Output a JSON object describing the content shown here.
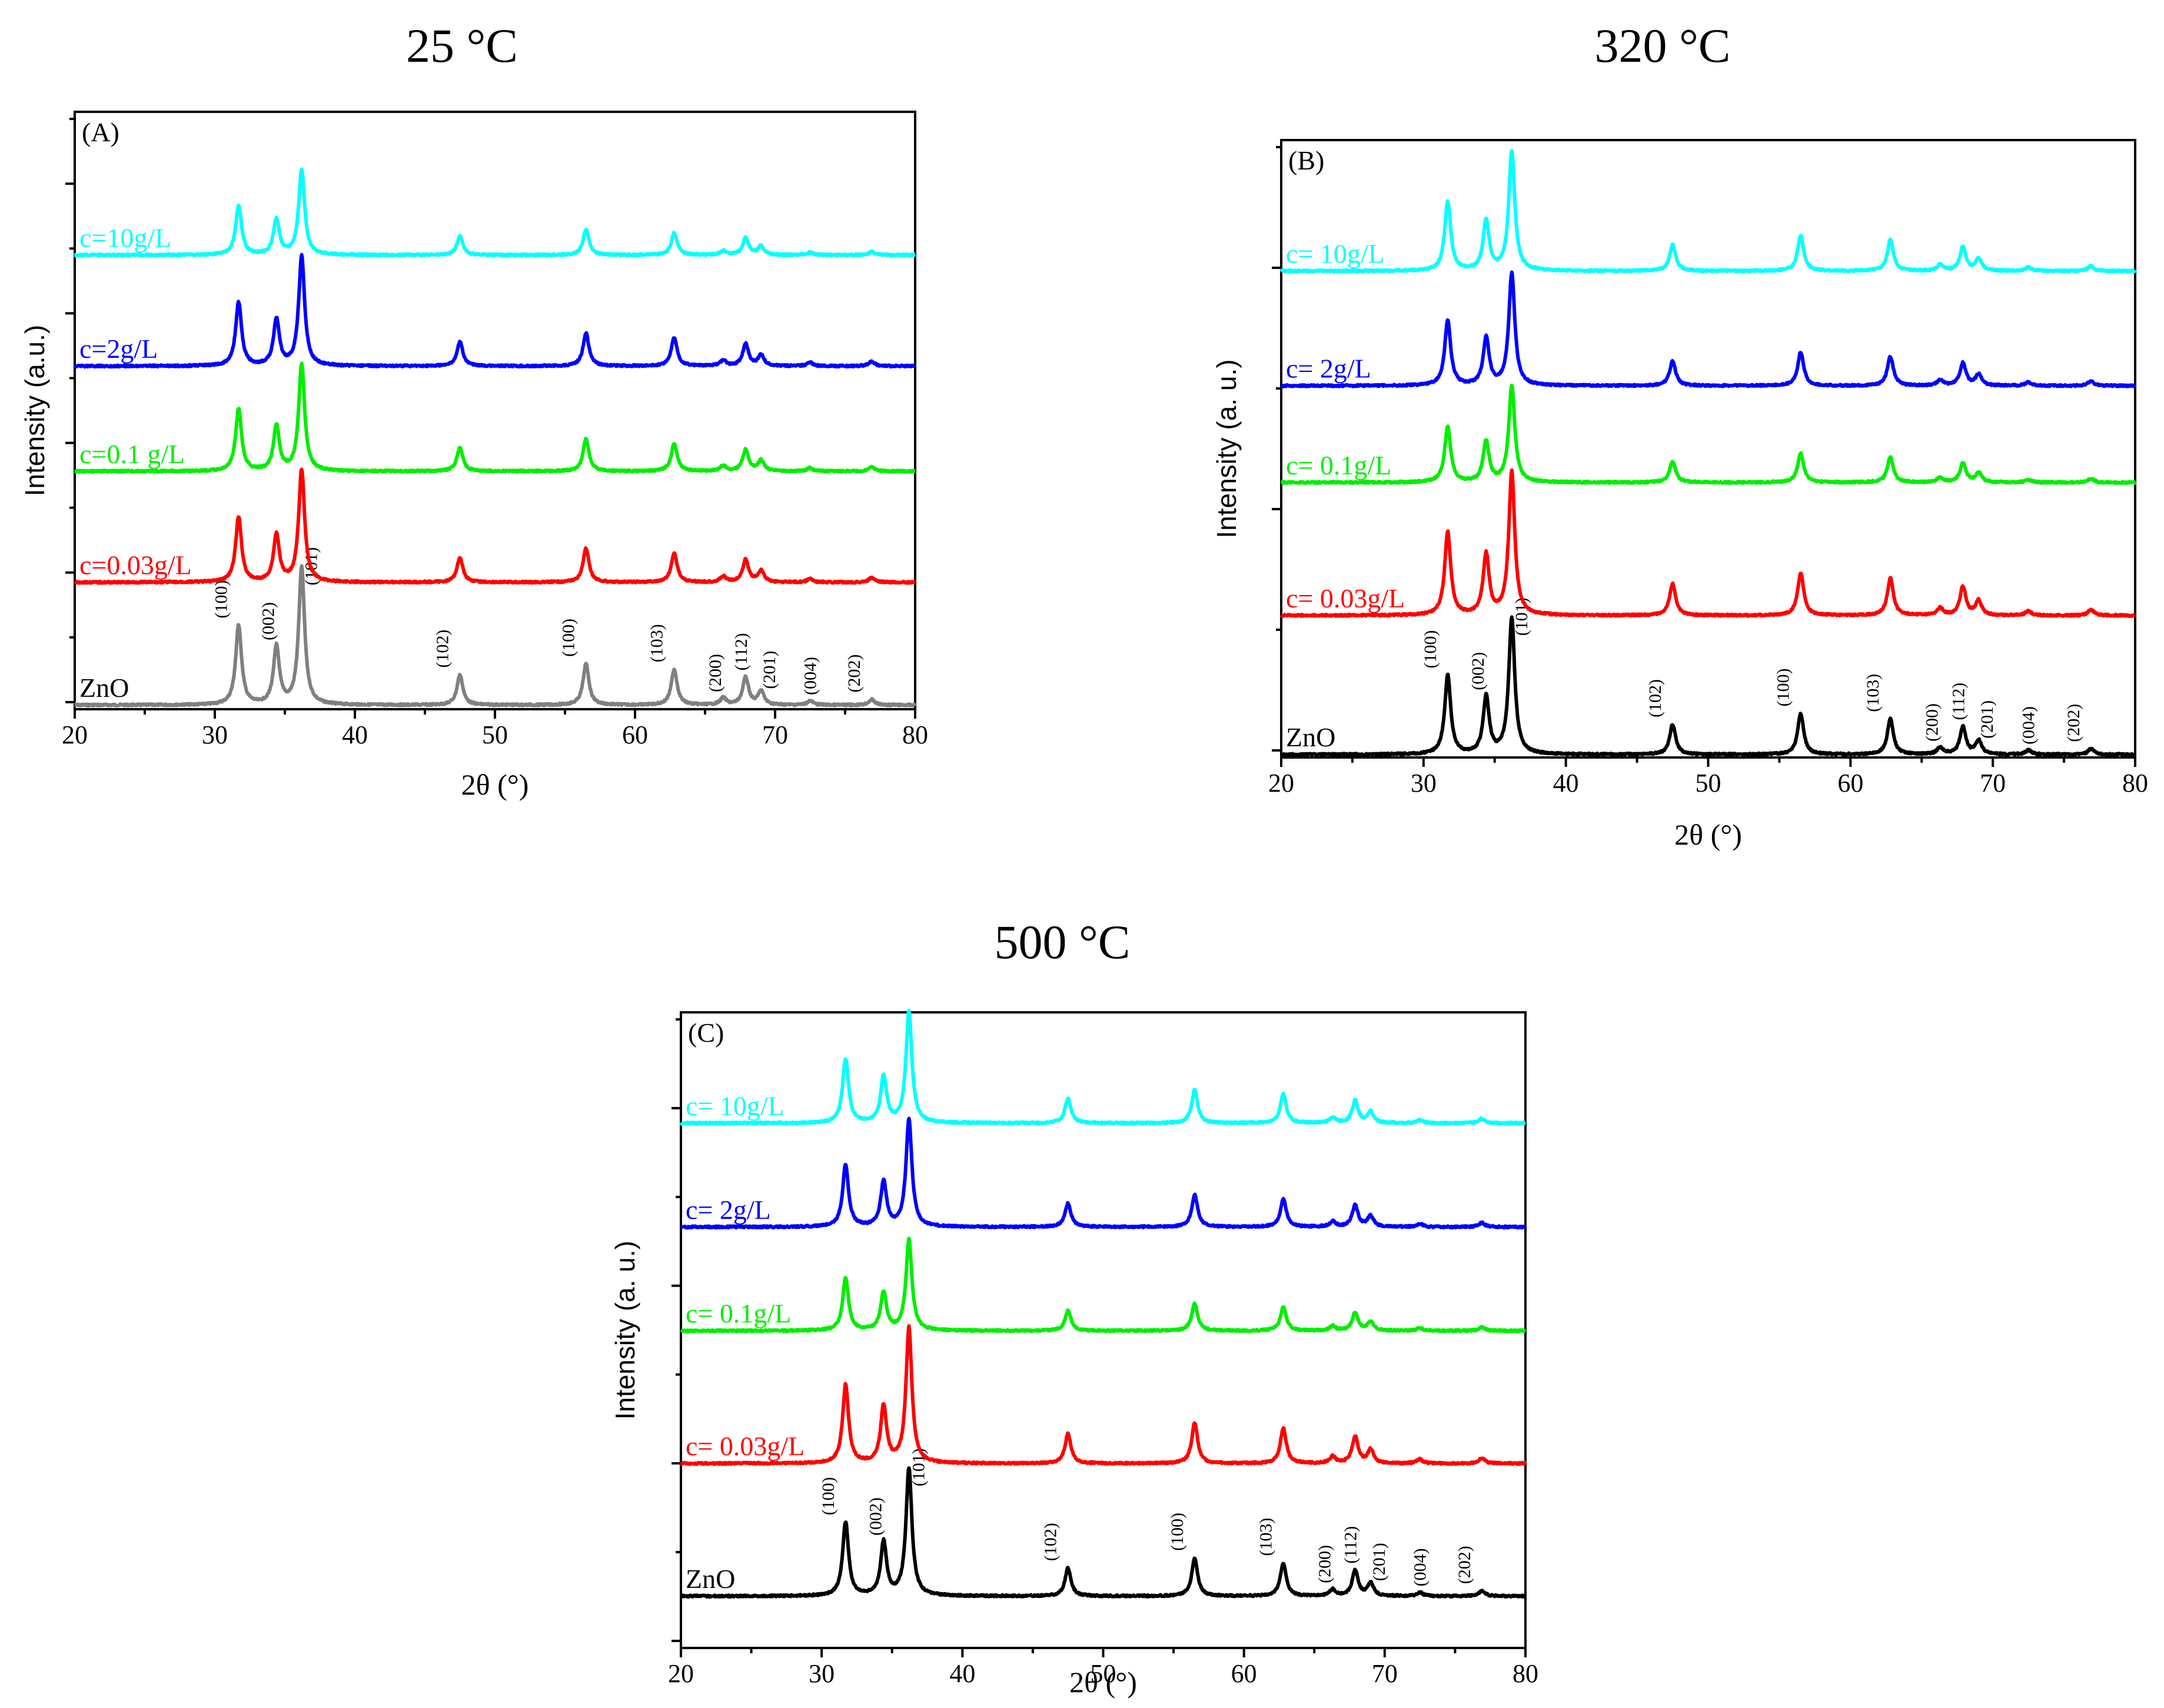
{
  "chart_data": [
    {
      "type": "line",
      "id": "A",
      "title": "25 °C",
      "panel_label": "(A)",
      "xlabel": "2θ (°)",
      "ylabel": "Intensity (a.u.)",
      "xlim": [
        20,
        80
      ],
      "xticks": [
        20,
        30,
        40,
        50,
        60,
        70,
        80
      ],
      "y_tick_count": 10,
      "series": [
        {
          "name": "ZnO",
          "label": "ZnO",
          "color": "#808080",
          "baseline": 0.0,
          "scale": 1.0
        },
        {
          "name": "c=0.03g/L",
          "label": "c=0.03g/L",
          "color": "#ff0000",
          "baseline": 0.21,
          "scale": 0.82
        },
        {
          "name": "c=0.1 g/L",
          "label": "c=0.1 g/L",
          "color": "#00ee00",
          "baseline": 0.4,
          "scale": 0.78
        },
        {
          "name": "c=2g/L",
          "label": "c=2g/L",
          "color": "#0000ff",
          "baseline": 0.58,
          "scale": 0.8
        },
        {
          "name": "c=10g/L",
          "label": "c=10g/L",
          "color": "#00ffff",
          "baseline": 0.77,
          "scale": 0.62
        }
      ]
    },
    {
      "type": "line",
      "id": "B",
      "title": "320 °C",
      "panel_label": "(B)",
      "xlabel": "2θ (°)",
      "ylabel": "Intensity (a. u.)",
      "xlim": [
        20,
        80
      ],
      "xticks": [
        20,
        30,
        40,
        50,
        60,
        70,
        80
      ],
      "y_tick_count": 6,
      "series": [
        {
          "name": "ZnO",
          "label": "ZnO",
          "color": "#000000",
          "baseline": 0.0,
          "scale": 0.96
        },
        {
          "name": "c= 0.03g/L",
          "label": "c= 0.03g/L",
          "color": "#ff0000",
          "baseline": 0.23,
          "scale": 1.01
        },
        {
          "name": "c= 0.1g/L",
          "label": "c= 0.1g/L",
          "color": "#00ee00",
          "baseline": 0.45,
          "scale": 0.68
        },
        {
          "name": "c= 2g/L",
          "label": "c= 2g/L",
          "color": "#0000ff",
          "baseline": 0.61,
          "scale": 0.79
        },
        {
          "name": "c= 10g/L",
          "label": "c= 10g/L",
          "color": "#00ffff",
          "baseline": 0.8,
          "scale": 0.84
        }
      ]
    },
    {
      "type": "line",
      "id": "C",
      "title": "500 °C",
      "panel_label": "(C)",
      "xlabel": "2θ (°)",
      "ylabel": "Intensity (a. u.)",
      "xlim": [
        20,
        80
      ],
      "xticks": [
        20,
        30,
        40,
        50,
        60,
        70,
        80
      ],
      "y_tick_count": 8,
      "series": [
        {
          "name": "ZnO",
          "label": "ZnO",
          "color": "#000000",
          "baseline": 0.0,
          "scale": 0.94
        },
        {
          "name": "c= 0.03g/L",
          "label": "c= 0.03g/L",
          "color": "#ff0000",
          "baseline": 0.23,
          "scale": 1.0
        },
        {
          "name": "c= 0.1g/L",
          "label": "c= 0.1g/L",
          "color": "#00ee00",
          "baseline": 0.46,
          "scale": 0.67
        },
        {
          "name": "c= 2g/L",
          "label": "c= 2g/L",
          "color": "#0000ff",
          "baseline": 0.64,
          "scale": 0.79
        },
        {
          "name": "c= 10g/L",
          "label": "c= 10g/L",
          "color": "#00ffff",
          "baseline": 0.82,
          "scale": 0.82
        }
      ]
    }
  ],
  "peaks": [
    {
      "two_theta": 31.7,
      "rel": 0.58,
      "hkl": "(100)"
    },
    {
      "two_theta": 34.4,
      "rel": 0.42,
      "hkl": "(002)"
    },
    {
      "two_theta": 36.2,
      "rel": 1.0,
      "hkl": "(101)"
    },
    {
      "two_theta": 47.5,
      "rel": 0.22,
      "hkl": "(102)"
    },
    {
      "two_theta": 56.5,
      "rel": 0.3,
      "hkl": "(100)"
    },
    {
      "two_theta": 62.8,
      "rel": 0.26,
      "hkl": "(103)"
    },
    {
      "two_theta": 66.3,
      "rel": 0.05,
      "hkl": "(200)"
    },
    {
      "two_theta": 67.9,
      "rel": 0.2,
      "hkl": "(112)"
    },
    {
      "two_theta": 69.0,
      "rel": 0.1,
      "hkl": "(201)"
    },
    {
      "two_theta": 72.5,
      "rel": 0.03,
      "hkl": "(004)"
    },
    {
      "two_theta": 76.9,
      "rel": 0.04,
      "hkl": "(202)"
    }
  ]
}
